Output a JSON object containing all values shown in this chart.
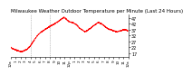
{
  "title": "Milwaukee Weather Outdoor Temperature per Minute (Last 24 Hours)",
  "title_fontsize": 4.0,
  "line_color": "#ff0000",
  "line_style": "--",
  "line_width": 0.6,
  "bg_color": "#ffffff",
  "plot_bg_color": "#ffffff",
  "y_ticks": [
    17,
    22,
    27,
    32,
    37,
    42,
    47
  ],
  "ylim": [
    14,
    50
  ],
  "xlim": [
    0,
    1439
  ],
  "vlines": [
    240,
    480
  ],
  "vline_color": "#888888",
  "vline_style": ":",
  "tick_fontsize": 3.5,
  "x_tick_labels": [
    "12a",
    "1",
    "2",
    "3",
    "4",
    "5",
    "6",
    "7",
    "8",
    "9",
    "10",
    "11",
    "12p",
    "1",
    "2",
    "3",
    "4",
    "5",
    "6",
    "7",
    "8",
    "9",
    "10",
    "11",
    "12a"
  ],
  "temp_profile": [
    22.0,
    21.5,
    21.0,
    20.8,
    20.5,
    20.2,
    20.0,
    19.7,
    19.5,
    19.2,
    19.0,
    18.8,
    18.5,
    18.3,
    18.5,
    18.8,
    19.0,
    19.3,
    19.7,
    20.0,
    20.5,
    21.0,
    21.8,
    22.5,
    23.5,
    24.5,
    25.5,
    26.5,
    27.5,
    28.5,
    29.5,
    30.5,
    31.5,
    32.5,
    33.3,
    33.8,
    34.3,
    34.8,
    35.3,
    35.8,
    36.3,
    36.8,
    37.3,
    37.8,
    38.2,
    38.6,
    39.0,
    39.4,
    39.8,
    40.2,
    40.6,
    41.0,
    41.4,
    41.8,
    42.2,
    42.6,
    43.0,
    43.5,
    44.0,
    44.5,
    45.0,
    45.5,
    46.0,
    46.5,
    47.0,
    47.2,
    47.0,
    46.5,
    46.0,
    45.3,
    44.5,
    44.0,
    43.8,
    43.5,
    43.2,
    43.0,
    42.8,
    42.5,
    42.2,
    42.0,
    41.5,
    40.8,
    40.0,
    39.2,
    38.5,
    38.0,
    37.5,
    37.0,
    36.5,
    36.0,
    35.5,
    35.2,
    35.5,
    36.0,
    36.5,
    37.0,
    37.5,
    38.0,
    38.5,
    39.0,
    39.5,
    40.0,
    40.5,
    41.0,
    41.5,
    42.0,
    42.5,
    43.0,
    43.0,
    42.8,
    42.5,
    42.0,
    41.5,
    41.0,
    40.5,
    40.0,
    39.5,
    39.0,
    38.5,
    38.0,
    37.5,
    37.2,
    37.0,
    36.8,
    36.5,
    36.3,
    36.0,
    35.8,
    35.5,
    35.3,
    35.0,
    35.2,
    35.5,
    35.8,
    36.0,
    36.2,
    36.5,
    36.7,
    36.8,
    36.9,
    37.0,
    36.8,
    36.5,
    36.2,
    36.0
  ]
}
